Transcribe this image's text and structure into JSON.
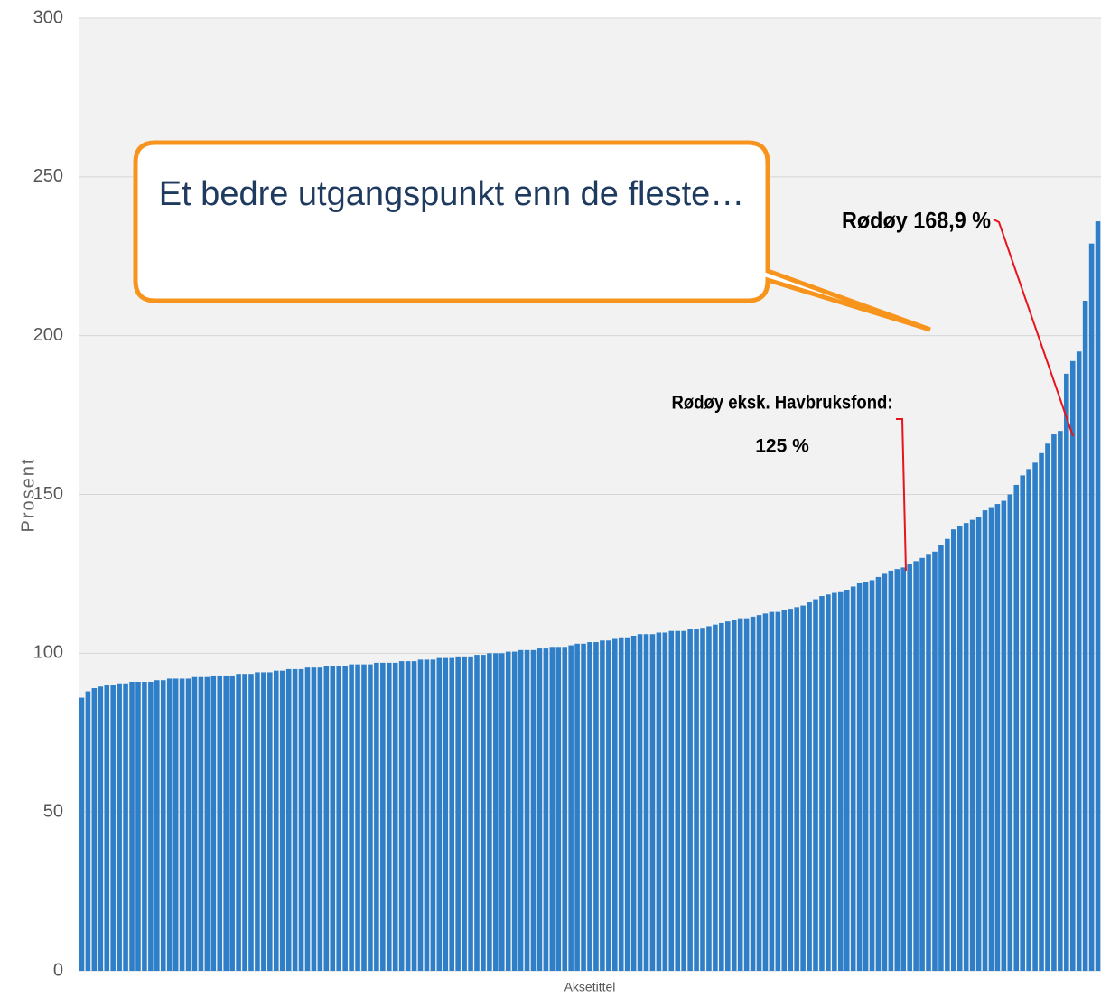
{
  "chart_data": {
    "type": "bar",
    "ylabel": "Prosent",
    "xlabel": "Aksetittel",
    "color": "#2e7fc8",
    "grid": true,
    "ylim": [
      0,
      300
    ],
    "yticks": [
      0,
      50,
      100,
      150,
      200,
      250,
      300
    ],
    "callout": "Et bedre utgangspunkt enn de fleste…",
    "annotations": [
      "Rødøy 168,9 %",
      "Rødøy eksk. Havbruksfond:",
      "125 %"
    ],
    "values": [
      86,
      88,
      89,
      89.5,
      90,
      90,
      90.5,
      90.5,
      91,
      91,
      91,
      91,
      91.5,
      91.5,
      92,
      92,
      92,
      92,
      92.5,
      92.5,
      92.5,
      93,
      93,
      93,
      93,
      93.5,
      93.5,
      93.5,
      94,
      94,
      94,
      94.5,
      94.5,
      95,
      95,
      95,
      95.5,
      95.5,
      95.5,
      96,
      96,
      96,
      96,
      96.5,
      96.5,
      96.5,
      96.5,
      97,
      97,
      97,
      97,
      97.5,
      97.5,
      97.5,
      98,
      98,
      98,
      98.5,
      98.5,
      98.5,
      99,
      99,
      99,
      99.5,
      99.5,
      100,
      100,
      100,
      100.5,
      100.5,
      101,
      101,
      101,
      101.5,
      101.5,
      102,
      102,
      102,
      102.5,
      103,
      103,
      103.5,
      103.5,
      104,
      104,
      104.5,
      105,
      105,
      105.5,
      106,
      106,
      106,
      106.5,
      106.5,
      107,
      107,
      107,
      107.5,
      107.5,
      108,
      108.5,
      109,
      109.5,
      110,
      110.5,
      111,
      111,
      111.5,
      112,
      112.5,
      113,
      113,
      113.5,
      114,
      114.5,
      115,
      116,
      117,
      118,
      118.5,
      119,
      119.5,
      120,
      121,
      122,
      122.5,
      123,
      124,
      125,
      126,
      126.5,
      127,
      128,
      129,
      130,
      131,
      132,
      134,
      136,
      139,
      140,
      141,
      142,
      143,
      145,
      146,
      147,
      148,
      150,
      153,
      156,
      158,
      160,
      163,
      166,
      168.9,
      170,
      188,
      192,
      195,
      211,
      229,
      236
    ]
  }
}
